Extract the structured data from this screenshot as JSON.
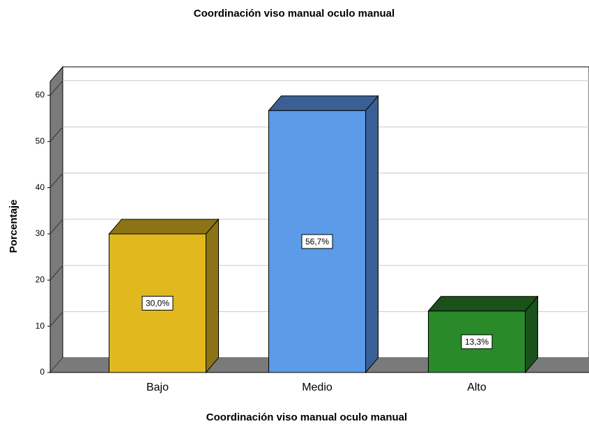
{
  "chart_data": {
    "type": "bar3d",
    "title": "Coordinación viso  manual oculo manual",
    "x_label": "Coordinación viso  manual oculo manual",
    "y_label": "Porcentaje",
    "categories": [
      "Bajo",
      "Medio",
      "Alto"
    ],
    "values": [
      30.0,
      56.7,
      13.3
    ],
    "value_labels": [
      "30,0%",
      "56,7%",
      "13,3%"
    ],
    "colors": [
      "#e1b91f",
      "#5b9be8",
      "#2a8a2a"
    ],
    "side_colors": [
      "#8c7416",
      "#3a5f94",
      "#1b511b"
    ],
    "ylim": [
      0,
      63
    ],
    "yticks": [
      0,
      10,
      20,
      30,
      40,
      50,
      60
    ],
    "grid": true
  }
}
